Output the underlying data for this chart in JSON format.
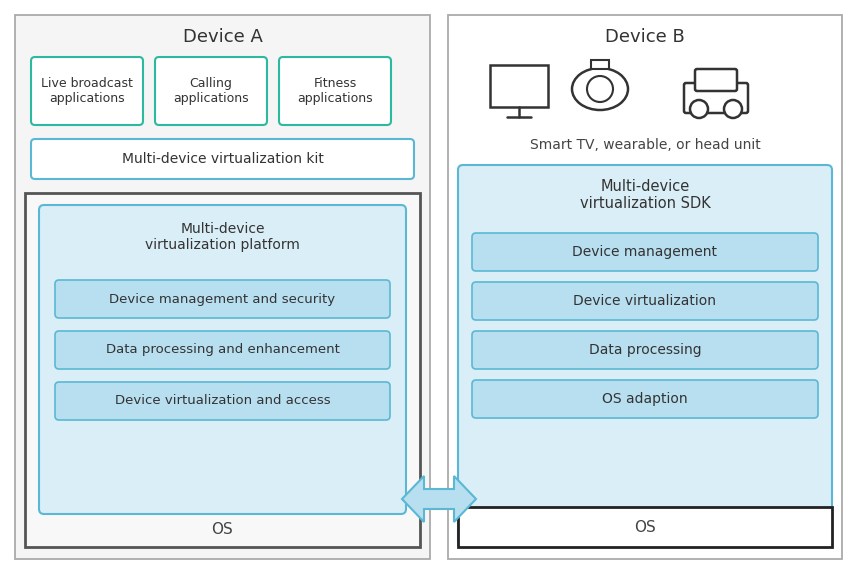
{
  "fig_width": 8.57,
  "fig_height": 5.74,
  "bg_color": "#ffffff",
  "device_a_title": "Device A",
  "device_b_title": "Device B",
  "device_b_subtitle": "Smart TV, wearable, or head unit",
  "app_boxes": [
    "Live broadcast\napplications",
    "Calling\napplications",
    "Fitness\napplications"
  ],
  "app_box_color": "#ffffff",
  "app_box_edge": "#2db8a0",
  "kit_label": "Multi-device virtualization kit",
  "kit_box_color": "#ffffff",
  "kit_box_edge": "#5ab8d4",
  "os_a_label": "OS",
  "os_b_label": "OS",
  "platform_label": "Multi-device\nvirtualization platform",
  "platform_box_color": "#daeef7",
  "platform_box_edge": "#5ab8d4",
  "platform_inner_boxes": [
    "Device management and security",
    "Data processing and enhancement",
    "Device virtualization and access"
  ],
  "inner_box_color": "#b8dff0",
  "inner_box_edge": "#5ab8d4",
  "sdk_label": "Multi-device\nvirtualization SDK",
  "sdk_box_color": "#daeef7",
  "sdk_box_edge": "#5ab8d4",
  "sdk_inner_boxes": [
    "Device management",
    "Device virtualization",
    "Data processing",
    "OS adaption"
  ],
  "arrow_color": "#b8dff0",
  "arrow_edge": "#5ab8d4",
  "device_a_box_color": "#f5f5f5",
  "device_a_box_edge": "#aaaaaa",
  "device_b_box_color": "#ffffff",
  "device_b_box_edge": "#aaaaaa",
  "dark_edge": "#555555",
  "black_edge": "#222222"
}
